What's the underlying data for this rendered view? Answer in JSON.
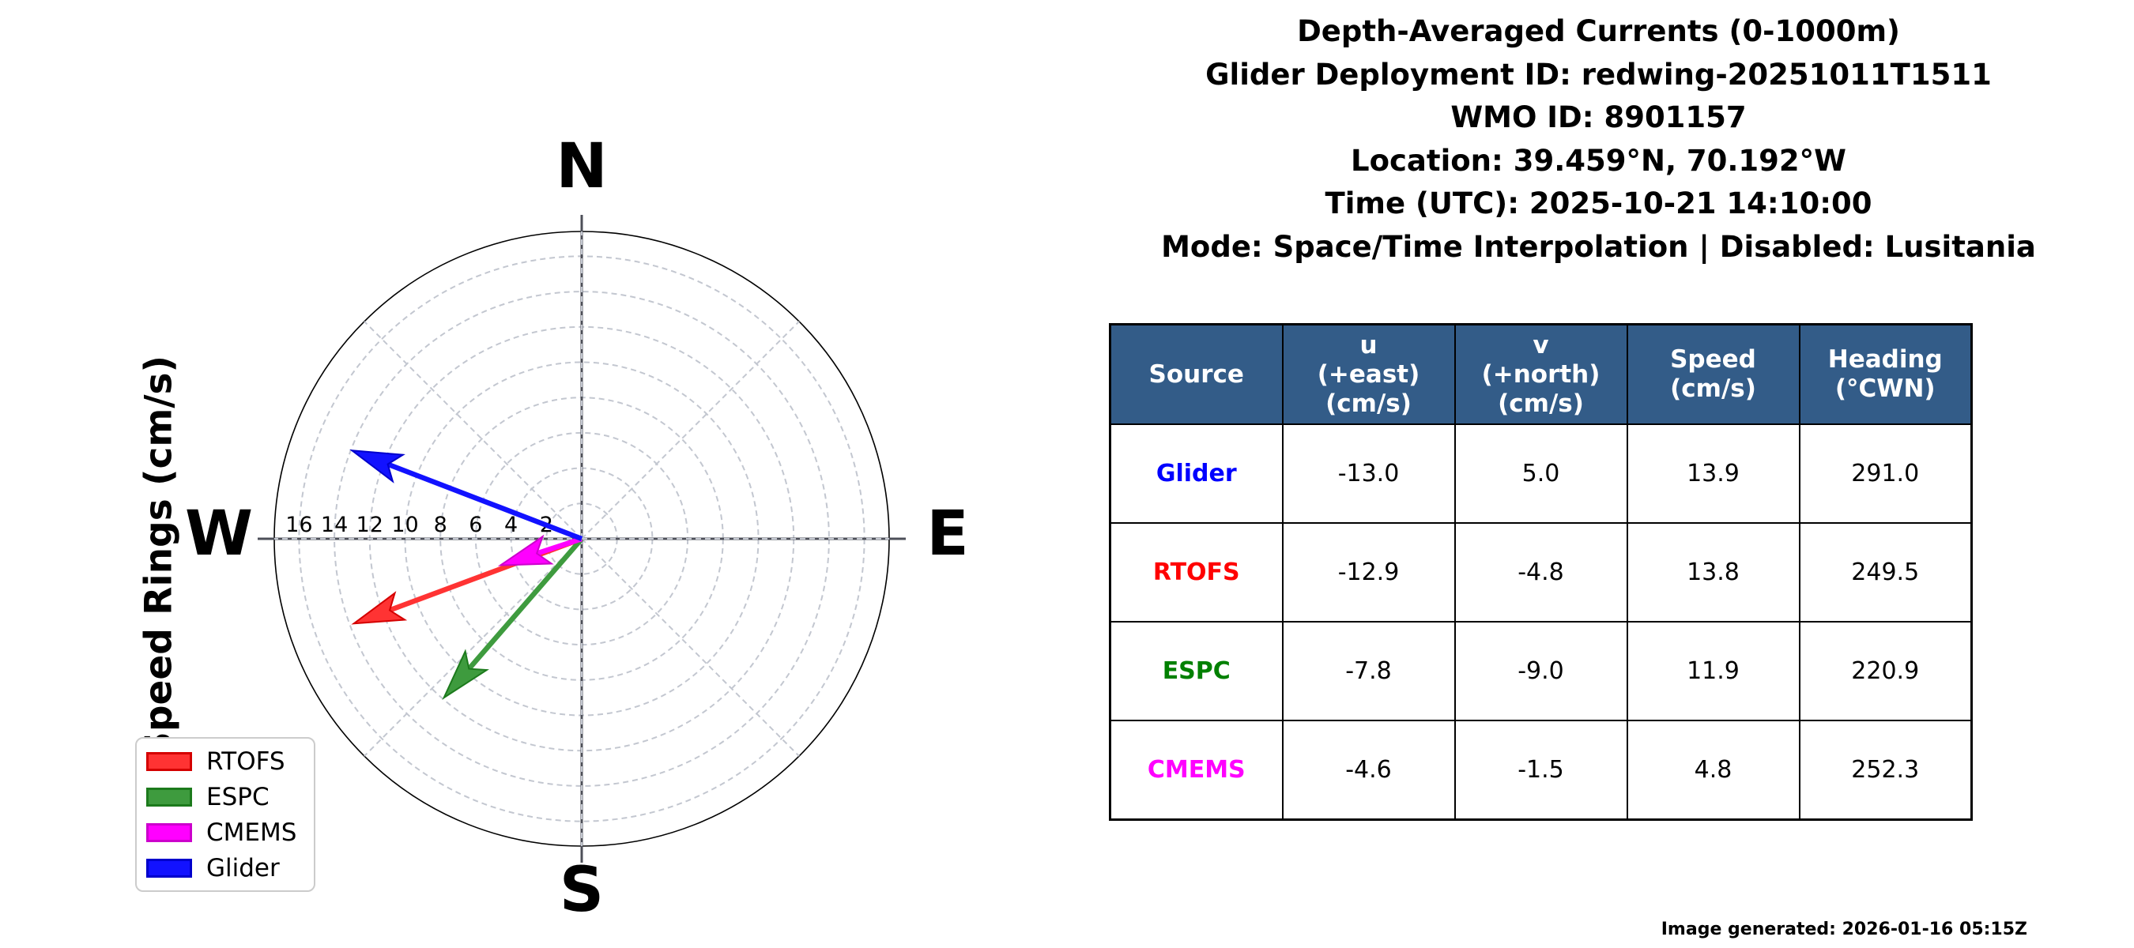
{
  "title_block": {
    "lines": [
      "Depth-Averaged Currents (0-1000m)",
      "Glider Deployment ID: redwing-20251011T1511",
      "WMO ID: 8901157",
      "Location: 39.459°N, 70.192°W",
      "Time (UTC): 2025-10-21 14:10:00",
      "Mode: Space/Time Interpolation | Disabled: Lusitania"
    ]
  },
  "chart_data": {
    "type": "scatter",
    "subtype": "vector-compass-quiver",
    "axis_label": "Speed Rings (cm/s)",
    "units": "cm/s",
    "compass": {
      "north": "N",
      "east": "E",
      "south": "S",
      "west": "W"
    },
    "rings": {
      "step": 2,
      "max": 16,
      "labels": [
        16,
        14,
        12,
        10,
        8,
        6,
        4,
        2
      ],
      "outer_circle": 17.4
    },
    "grid": "dashed rings every 2 cm/s with 45-degree dashed spokes",
    "series": [
      {
        "name": "RTOFS",
        "u": -12.9,
        "v": -4.8,
        "speed": 13.8,
        "heading_deg_cwn": 249.5,
        "color": "#ff3333",
        "edge": "#d40000"
      },
      {
        "name": "ESPC",
        "u": -7.8,
        "v": -9.0,
        "speed": 11.9,
        "heading_deg_cwn": 220.9,
        "color": "#3e9b3e",
        "edge": "#1c7a1c"
      },
      {
        "name": "CMEMS",
        "u": -4.6,
        "v": -1.5,
        "speed": 4.8,
        "heading_deg_cwn": 252.3,
        "color": "#ff00ff",
        "edge": "#cc00cc"
      },
      {
        "name": "Glider",
        "u": -13.0,
        "v": 5.0,
        "speed": 13.9,
        "heading_deg_cwn": 291.0,
        "color": "#1212ff",
        "edge": "#0000cc"
      }
    ],
    "legend": [
      "RTOFS",
      "ESPC",
      "CMEMS",
      "Glider"
    ],
    "legend_position": "lower left"
  },
  "table": {
    "header_bg": "#335c88",
    "headers": [
      "Source",
      "u\n(+east)\n(cm/s)",
      "v\n(+north)\n(cm/s)",
      "Speed\n(cm/s)",
      "Heading\n(°CWN)"
    ],
    "rows": [
      {
        "source": "Glider",
        "source_color": "#0000ff",
        "u": "-13.0",
        "v": "5.0",
        "speed": "13.9",
        "heading": "291.0"
      },
      {
        "source": "RTOFS",
        "source_color": "#ff0000",
        "u": "-12.9",
        "v": "-4.8",
        "speed": "13.8",
        "heading": "249.5"
      },
      {
        "source": "ESPC",
        "source_color": "#008000",
        "u": "-7.8",
        "v": "-9.0",
        "speed": "11.9",
        "heading": "220.9"
      },
      {
        "source": "CMEMS",
        "source_color": "#ff00ff",
        "u": "-4.6",
        "v": "-1.5",
        "speed": "4.8",
        "heading": "252.3"
      }
    ]
  },
  "footer": {
    "generated_label": "Image generated: 2026-01-16 05:15Z"
  }
}
